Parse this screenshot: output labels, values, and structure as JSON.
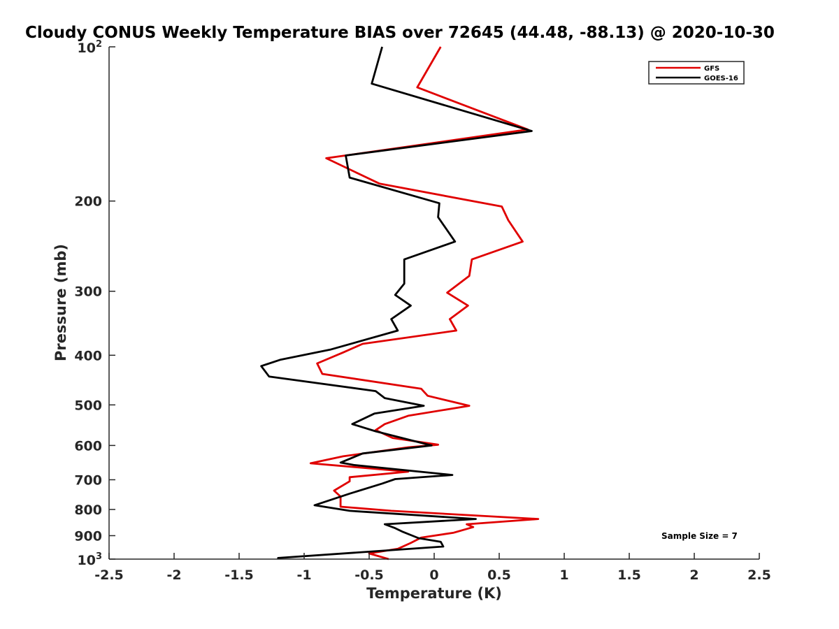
{
  "chart_data": {
    "type": "line",
    "title": "Cloudy CONUS Weekly Temperature BIAS over 72645 (44.48, -88.13) @ 2020-10-30",
    "xlabel": "Temperature (K)",
    "ylabel": "Pressure (mb)",
    "xlim": [
      -2.5,
      2.5
    ],
    "ylim": [
      100,
      1000
    ],
    "y_scale": "log",
    "y_reversed": true,
    "x_ticks": [
      -2.5,
      -2,
      -1.5,
      -1,
      -0.5,
      0,
      0.5,
      1,
      1.5,
      2,
      2.5
    ],
    "x_tick_labels": [
      "-2.5",
      "-2",
      "-1.5",
      "-1",
      "-0.5",
      "0",
      "0.5",
      "1",
      "1.5",
      "2",
      "2.5"
    ],
    "y_ticks": [
      200,
      300,
      400,
      500,
      600,
      700,
      800,
      900
    ],
    "y_tick_labels": [
      "200",
      "300",
      "400",
      "500",
      "600",
      "700",
      "800",
      "900"
    ],
    "y_edge_ticks": [
      {
        "value": 100,
        "base": "10",
        "exp": "2"
      },
      {
        "value": 1000,
        "base": "10",
        "exp": "3"
      }
    ],
    "grid": false,
    "legend_position": "top-right",
    "annotation": "Sample Size = 7",
    "series": [
      {
        "name": "GFS",
        "color": "#e00000",
        "points": [
          [
            0.05,
            100
          ],
          [
            -0.13,
            120
          ],
          [
            0.72,
            145
          ],
          [
            -0.83,
            165
          ],
          [
            -0.42,
            185
          ],
          [
            0.52,
            205
          ],
          [
            0.57,
            218
          ],
          [
            0.68,
            240
          ],
          [
            0.29,
            260
          ],
          [
            0.27,
            280
          ],
          [
            0.1,
            302
          ],
          [
            0.26,
            320
          ],
          [
            0.12,
            340
          ],
          [
            0.17,
            358
          ],
          [
            -0.55,
            380
          ],
          [
            -0.7,
            395
          ],
          [
            -0.9,
            415
          ],
          [
            -0.86,
            435
          ],
          [
            -0.1,
            465
          ],
          [
            -0.05,
            480
          ],
          [
            0.27,
            502
          ],
          [
            -0.2,
            525
          ],
          [
            -0.38,
            545
          ],
          [
            -0.45,
            560
          ],
          [
            -0.32,
            580
          ],
          [
            0.03,
            598
          ],
          [
            -0.2,
            605
          ],
          [
            -0.7,
            630
          ],
          [
            -0.95,
            650
          ],
          [
            -0.2,
            675
          ],
          [
            -0.65,
            692
          ],
          [
            -0.65,
            705
          ],
          [
            -0.77,
            735
          ],
          [
            -0.72,
            755
          ],
          [
            -0.72,
            790
          ],
          [
            -0.33,
            805
          ],
          [
            0.8,
            835
          ],
          [
            0.25,
            855
          ],
          [
            0.3,
            866
          ],
          [
            0.15,
            888
          ],
          [
            -0.1,
            908
          ],
          [
            -0.18,
            930
          ],
          [
            -0.28,
            955
          ],
          [
            -0.5,
            975
          ],
          [
            -0.35,
            1000
          ]
        ]
      },
      {
        "name": "GOES-16",
        "color": "#000000",
        "points": [
          [
            -0.4,
            100
          ],
          [
            -0.48,
            118
          ],
          [
            0.75,
            146
          ],
          [
            -0.68,
            163
          ],
          [
            -0.65,
            180
          ],
          [
            0.04,
            202
          ],
          [
            0.03,
            215
          ],
          [
            0.16,
            240
          ],
          [
            -0.23,
            260
          ],
          [
            -0.23,
            290
          ],
          [
            -0.3,
            305
          ],
          [
            -0.18,
            320
          ],
          [
            -0.33,
            340
          ],
          [
            -0.28,
            358
          ],
          [
            -0.8,
            390
          ],
          [
            -1.18,
            408
          ],
          [
            -1.33,
            420
          ],
          [
            -1.27,
            440
          ],
          [
            -0.45,
            470
          ],
          [
            -0.38,
            485
          ],
          [
            -0.08,
            502
          ],
          [
            -0.46,
            520
          ],
          [
            -0.63,
            545
          ],
          [
            -0.45,
            563
          ],
          [
            -0.02,
            600
          ],
          [
            -0.55,
            622
          ],
          [
            -0.72,
            648
          ],
          [
            -0.62,
            655
          ],
          [
            0.14,
            685
          ],
          [
            -0.3,
            698
          ],
          [
            -0.4,
            712
          ],
          [
            -0.65,
            745
          ],
          [
            -0.92,
            785
          ],
          [
            -0.65,
            805
          ],
          [
            0.32,
            835
          ],
          [
            -0.38,
            855
          ],
          [
            -0.3,
            870
          ],
          [
            -0.24,
            885
          ],
          [
            -0.12,
            910
          ],
          [
            0.05,
            925
          ],
          [
            0.07,
            945
          ],
          [
            -1.2,
            995
          ],
          [
            -1.2,
            1000
          ]
        ]
      }
    ]
  }
}
